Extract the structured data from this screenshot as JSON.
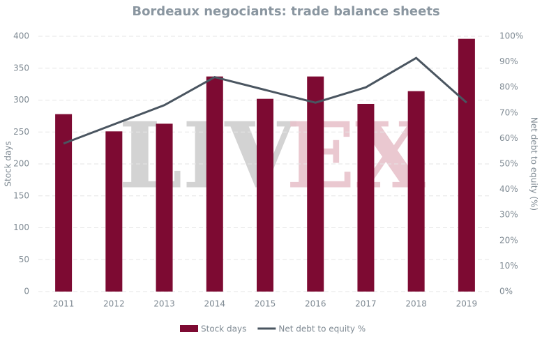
{
  "chart_data": {
    "type": "bar_line",
    "title": "Bordeaux negociants: trade balance sheets",
    "watermark": [
      "LIV",
      "EX"
    ],
    "categories": [
      "2011",
      "2012",
      "2013",
      "2014",
      "2015",
      "2016",
      "2017",
      "2018",
      "2019"
    ],
    "series": [
      {
        "name": "Stock days",
        "color": "#7d0a32",
        "type": "bar",
        "values": [
          278,
          251,
          263,
          337,
          302,
          337,
          294,
          314,
          396
        ]
      },
      {
        "name": "Net debt to equity %",
        "color": "#4a5560",
        "type": "line",
        "axis": "y2",
        "values": [
          58,
          65.5,
          73,
          84,
          79,
          74,
          80,
          91.5,
          74
        ]
      }
    ],
    "ylabel": "Stock days",
    "y2label": "Net debt to equity (%)",
    "ylim": [
      0,
      400
    ],
    "yticks": [
      0,
      50,
      100,
      150,
      200,
      250,
      300,
      350,
      400
    ],
    "y2lim": [
      0,
      100
    ],
    "y2ticks": [
      {
        "value": 0,
        "label": "0%"
      },
      {
        "value": 10,
        "label": "10%"
      },
      {
        "value": 20,
        "label": "20%"
      },
      {
        "value": 30,
        "label": "30%"
      },
      {
        "value": 40,
        "label": "40%"
      },
      {
        "value": 50,
        "label": "50%"
      },
      {
        "value": 60,
        "label": "60%"
      },
      {
        "value": 70,
        "label": "70%"
      },
      {
        "value": 80,
        "label": "80%"
      },
      {
        "value": 90,
        "label": "90%"
      },
      {
        "value": 100,
        "label": "100%"
      }
    ],
    "grid": true,
    "legend": "bottom"
  }
}
